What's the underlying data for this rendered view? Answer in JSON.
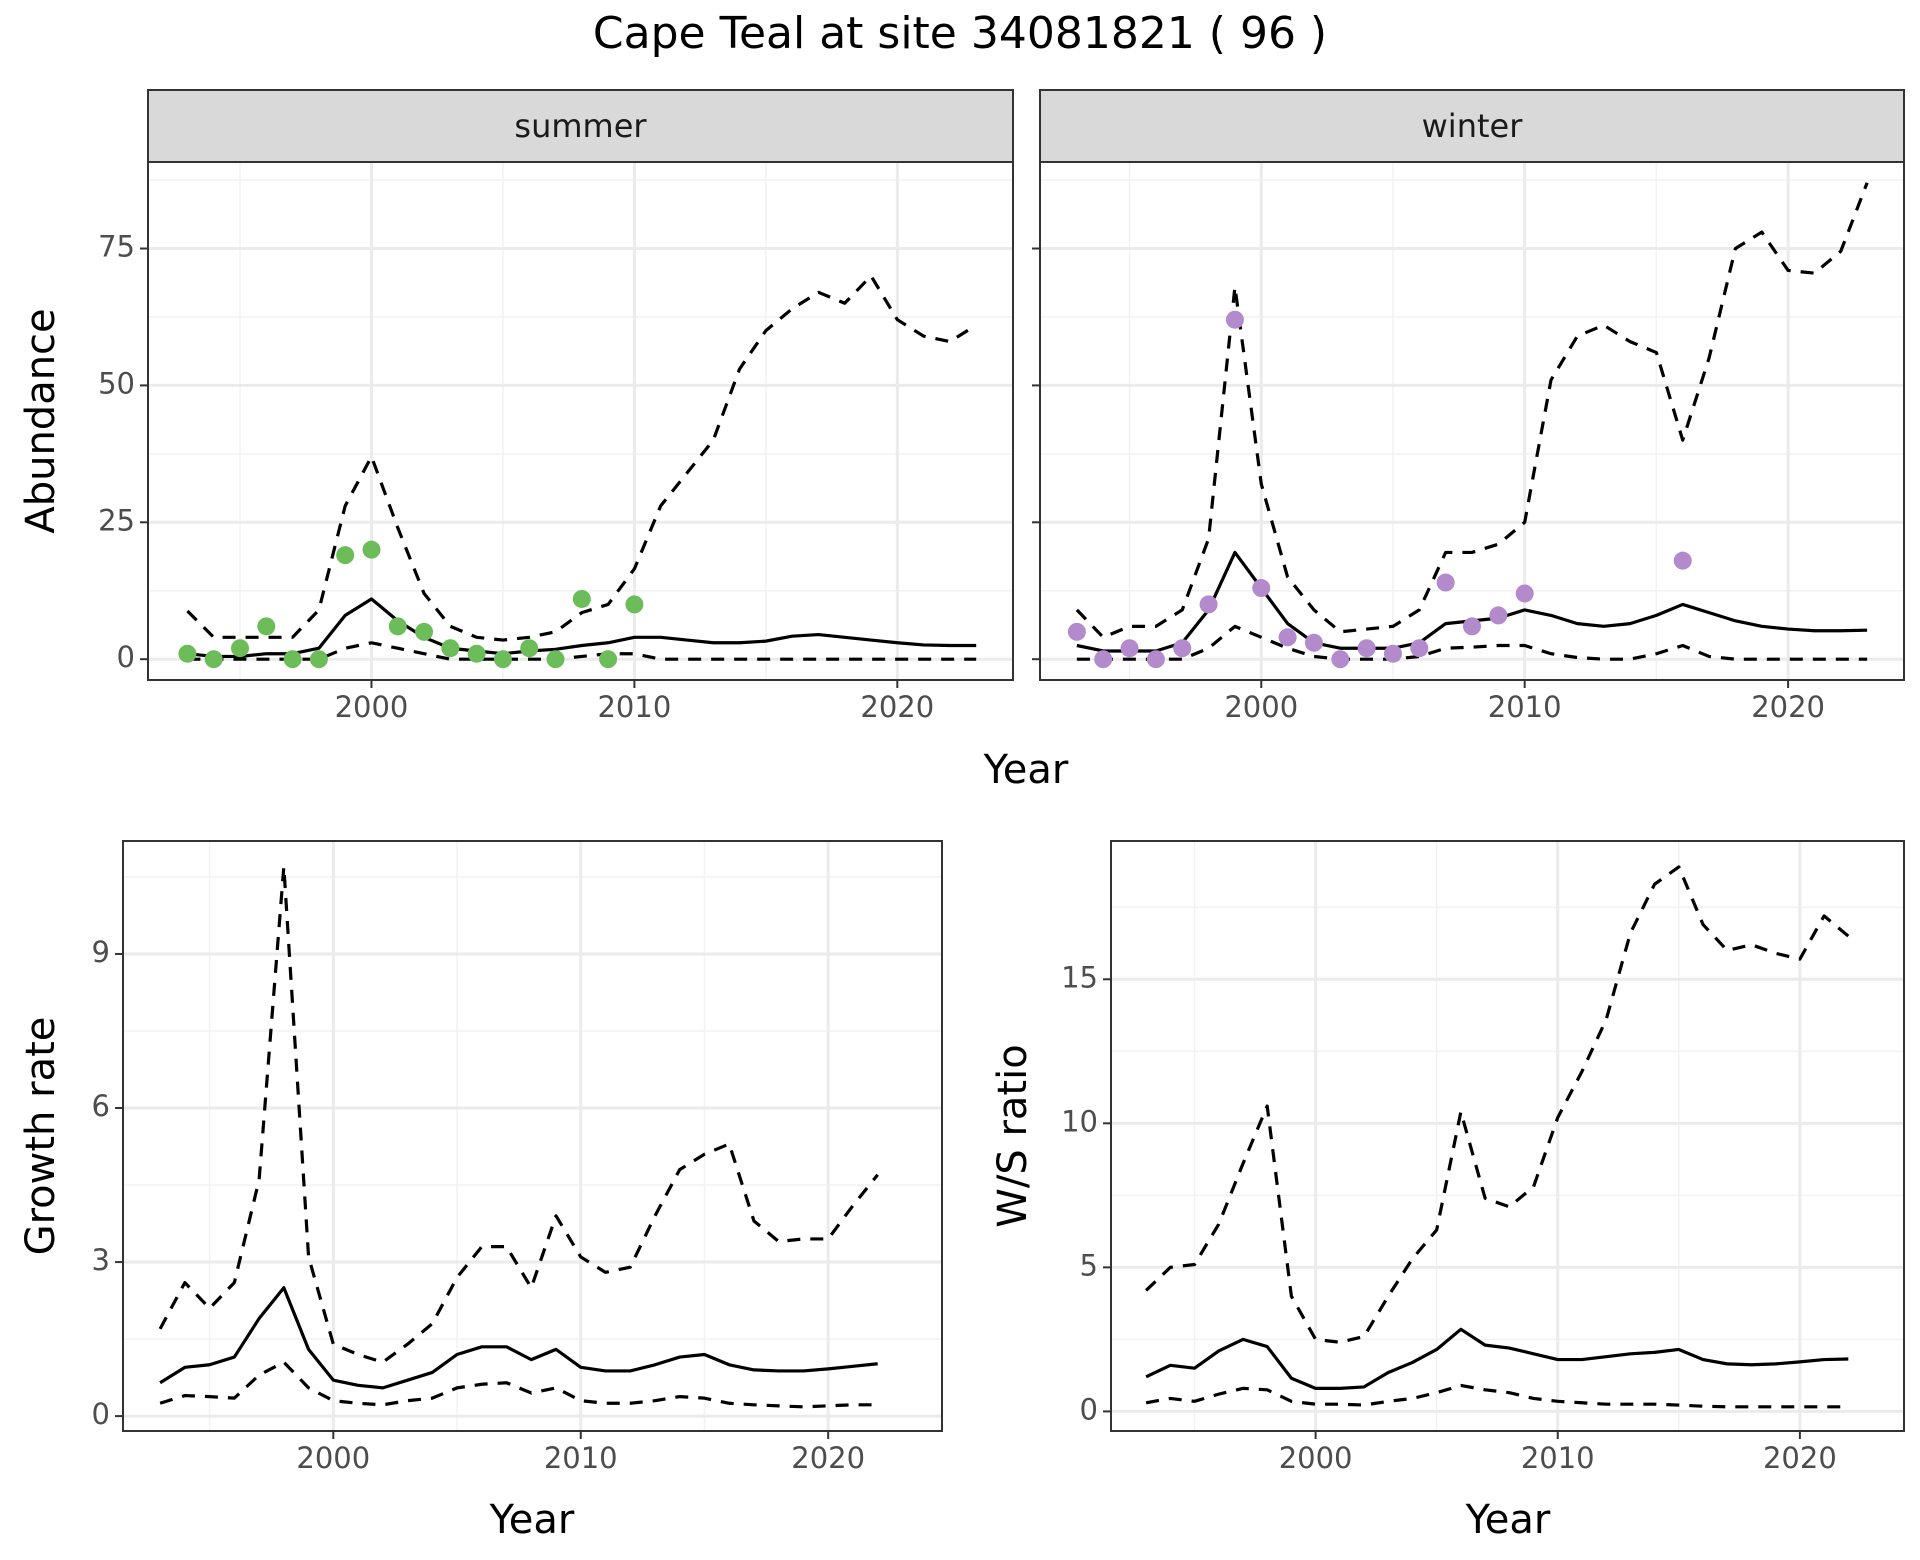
{
  "title": "Cape Teal at site 34081821 ( 96 )",
  "chart_data": [
    {
      "type": "line",
      "strip": "summer",
      "y_label": "Abundance",
      "x_label": "Year",
      "x": [
        1993,
        1994,
        1995,
        1996,
        1997,
        1998,
        1999,
        2000,
        2001,
        2002,
        2003,
        2004,
        2005,
        2006,
        2007,
        2008,
        2009,
        2010,
        2011,
        2012,
        2013,
        2014,
        2015,
        2016,
        2017,
        2018,
        2019,
        2020,
        2021,
        2022,
        2023
      ],
      "xlim": [
        1991.5,
        2024.4
      ],
      "xticks": [
        2000,
        2010,
        2020
      ],
      "xminor": [
        1995,
        2005,
        2015
      ],
      "ylim": [
        -3.8,
        90.8
      ],
      "yticks": [
        0,
        25,
        50,
        75
      ],
      "yminor": [
        12.5,
        37.5,
        62.5,
        87.5
      ],
      "ytick_labels": true,
      "grid": true,
      "series": [
        {
          "color": "#000000",
          "linestyle": "dashed",
          "values": [
            8.8,
            4,
            4,
            4,
            4,
            9,
            28,
            37,
            24,
            12,
            6,
            4,
            3.5,
            4,
            5,
            8.5,
            10,
            16.5,
            28,
            34,
            40,
            53,
            60,
            64,
            67,
            65,
            70,
            62,
            59,
            58,
            61
          ]
        },
        {
          "color": "#000000",
          "linestyle": "solid",
          "values": [
            1,
            0.5,
            0.5,
            1,
            1,
            2,
            8,
            11,
            7,
            4,
            2,
            1.5,
            1,
            1.5,
            1.8,
            2.5,
            3,
            4,
            4,
            3.5,
            3,
            3,
            3.3,
            4.2,
            4.5,
            4,
            3.5,
            3,
            2.6,
            2.5,
            2.5
          ]
        },
        {
          "color": "#000000",
          "linestyle": "dashed",
          "values": [
            0,
            0,
            0,
            0,
            0,
            0,
            2,
            3,
            2,
            1,
            0,
            0,
            0,
            0,
            0,
            0.5,
            1,
            1,
            0,
            0,
            0,
            0,
            0,
            0,
            0,
            0,
            0,
            0,
            0,
            0,
            0
          ]
        },
        {
          "color": "#6cbd5a",
          "marker": "circle",
          "values": [
            1,
            0,
            2,
            6,
            0,
            0,
            19,
            20,
            6,
            5,
            2,
            1,
            0,
            2,
            0,
            11,
            0,
            10,
            null,
            null,
            null,
            null,
            null,
            null,
            null,
            null,
            null,
            null,
            null,
            null,
            null
          ]
        }
      ]
    },
    {
      "type": "line",
      "strip": "winter",
      "x": [
        1993,
        1994,
        1995,
        1996,
        1997,
        1998,
        1999,
        2000,
        2001,
        2002,
        2003,
        2004,
        2005,
        2006,
        2007,
        2008,
        2009,
        2010,
        2011,
        2012,
        2013,
        2014,
        2015,
        2016,
        2017,
        2018,
        2019,
        2020,
        2021,
        2022,
        2023
      ],
      "xlim": [
        1991.6,
        2024.4
      ],
      "xticks": [
        2000,
        2010,
        2020
      ],
      "xminor": [
        1995,
        2005,
        2015
      ],
      "ylim": [
        -3.8,
        90.8
      ],
      "yticks": [
        0,
        25,
        50,
        75
      ],
      "yminor": [
        12.5,
        37.5,
        62.5,
        87.5
      ],
      "ytick_labels": false,
      "grid": true,
      "series": [
        {
          "color": "#000000",
          "linestyle": "dashed",
          "values": [
            9,
            4,
            6,
            6,
            9,
            22,
            68,
            32,
            15,
            9,
            5,
            5.5,
            6,
            9,
            19.5,
            19.5,
            21,
            25,
            51,
            59,
            61,
            58,
            56,
            40,
            55,
            75,
            78,
            71,
            70.5,
            74.5,
            87
          ]
        },
        {
          "color": "#000000",
          "linestyle": "solid",
          "values": [
            2.5,
            1.5,
            1.5,
            1.5,
            3,
            9,
            19.5,
            13,
            6.5,
            3,
            2,
            2,
            2,
            3,
            6.5,
            7,
            7.5,
            9,
            8,
            6.5,
            6,
            6.5,
            8,
            10,
            8.5,
            7,
            6,
            5.5,
            5.2,
            5.2,
            5.3
          ]
        },
        {
          "color": "#000000",
          "linestyle": "dashed",
          "values": [
            0,
            0,
            0,
            0,
            0,
            2,
            6,
            4,
            2,
            0.5,
            0,
            0,
            0,
            0.5,
            2,
            2.2,
            2.5,
            2.5,
            1,
            0.3,
            0,
            0,
            1,
            2.5,
            0.5,
            0,
            0,
            0,
            0,
            0,
            0
          ]
        },
        {
          "color": "#b38acb",
          "marker": "circle",
          "values": [
            5,
            0,
            2,
            0,
            2,
            10,
            62,
            13,
            4,
            3,
            0,
            2,
            1,
            2,
            14,
            6,
            8,
            12,
            null,
            null,
            null,
            null,
            null,
            18,
            null,
            null,
            null,
            null,
            null,
            null,
            null
          ]
        }
      ]
    },
    {
      "type": "line",
      "y_label": "Growth rate",
      "x_label": "Year",
      "x": [
        1993,
        1994,
        1995,
        1996,
        1997,
        1998,
        1999,
        2000,
        2001,
        2002,
        2003,
        2004,
        2005,
        2006,
        2007,
        2008,
        2009,
        2010,
        2011,
        2012,
        2013,
        2014,
        2015,
        2016,
        2017,
        2018,
        2019,
        2020,
        2021,
        2022
      ],
      "xlim": [
        1991.5,
        2024.6
      ],
      "xticks": [
        2000,
        2010,
        2020
      ],
      "xminor": [
        1995,
        2005,
        2015
      ],
      "ylim": [
        -0.29,
        11.2
      ],
      "yticks": [
        0,
        3,
        6,
        9
      ],
      "yminor": [
        1.5,
        4.5,
        7.5,
        10.5
      ],
      "ytick_labels": true,
      "grid": true,
      "series": [
        {
          "color": "#000000",
          "linestyle": "dashed",
          "values": [
            1.7,
            2.6,
            2.1,
            2.6,
            4.6,
            10.7,
            3.1,
            1.4,
            1.2,
            1.05,
            1.4,
            1.8,
            2.7,
            3.3,
            3.3,
            2.5,
            3.9,
            3.1,
            2.8,
            2.9,
            3.9,
            4.8,
            5.1,
            5.3,
            3.8,
            3.4,
            3.45,
            3.45,
            4.1,
            4.7
          ]
        },
        {
          "color": "#000000",
          "linestyle": "solid",
          "values": [
            0.65,
            0.95,
            1.0,
            1.15,
            1.9,
            2.5,
            1.3,
            0.7,
            0.6,
            0.55,
            0.7,
            0.85,
            1.2,
            1.35,
            1.35,
            1.1,
            1.3,
            0.95,
            0.88,
            0.88,
            1.0,
            1.15,
            1.2,
            1.0,
            0.9,
            0.88,
            0.88,
            0.92,
            0.97,
            1.02
          ]
        },
        {
          "color": "#000000",
          "linestyle": "dashed",
          "values": [
            0.25,
            0.4,
            0.38,
            0.35,
            0.8,
            1.05,
            0.55,
            0.3,
            0.25,
            0.22,
            0.3,
            0.35,
            0.55,
            0.62,
            0.65,
            0.45,
            0.55,
            0.3,
            0.25,
            0.25,
            0.3,
            0.38,
            0.35,
            0.25,
            0.22,
            0.2,
            0.18,
            0.2,
            0.22,
            0.22
          ]
        }
      ]
    },
    {
      "type": "line",
      "y_label": "W/S ratio",
      "x_label": "Year",
      "x": [
        1993,
        1994,
        1995,
        1996,
        1997,
        1998,
        1999,
        2000,
        2001,
        2002,
        2003,
        2004,
        2005,
        2006,
        2007,
        2008,
        2009,
        2010,
        2011,
        2012,
        2013,
        2014,
        2015,
        2016,
        2017,
        2018,
        2019,
        2020,
        2021,
        2022
      ],
      "xlim": [
        1991.55,
        2024.3
      ],
      "xticks": [
        2000,
        2010,
        2020
      ],
      "xminor": [
        1995,
        2005,
        2015
      ],
      "ylim": [
        -0.68,
        19.8
      ],
      "yticks": [
        0,
        5,
        10,
        15
      ],
      "yminor": [
        2.5,
        7.5,
        12.5,
        17.5
      ],
      "ytick_labels": true,
      "grid": true,
      "series": [
        {
          "color": "#000000",
          "linestyle": "dashed",
          "values": [
            4.2,
            5,
            5.1,
            6.5,
            8.6,
            10.6,
            4,
            2.5,
            2.4,
            2.6,
            4,
            5.3,
            6.3,
            10.4,
            7.4,
            7.1,
            7.8,
            10.2,
            11.8,
            13.6,
            16.6,
            18.3,
            18.9,
            16.9,
            16,
            16.2,
            15.9,
            15.7,
            17.2,
            16.5
          ]
        },
        {
          "color": "#000000",
          "linestyle": "solid",
          "values": [
            1.2,
            1.6,
            1.5,
            2.1,
            2.5,
            2.25,
            1.15,
            0.8,
            0.8,
            0.85,
            1.35,
            1.7,
            2.15,
            2.85,
            2.3,
            2.2,
            2.0,
            1.8,
            1.8,
            1.9,
            2.0,
            2.05,
            2.15,
            1.8,
            1.65,
            1.62,
            1.65,
            1.72,
            1.8,
            1.82
          ]
        },
        {
          "color": "#000000",
          "linestyle": "dashed",
          "values": [
            0.3,
            0.45,
            0.35,
            0.6,
            0.8,
            0.75,
            0.35,
            0.25,
            0.25,
            0.22,
            0.35,
            0.45,
            0.65,
            0.9,
            0.75,
            0.65,
            0.45,
            0.35,
            0.3,
            0.25,
            0.25,
            0.25,
            0.22,
            0.18,
            0.16,
            0.16,
            0.16,
            0.16,
            0.16,
            0.16
          ]
        }
      ]
    }
  ]
}
